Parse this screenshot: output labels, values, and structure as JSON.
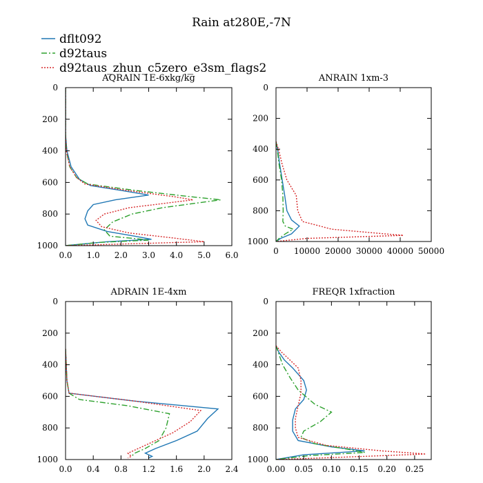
{
  "figure_title": "Rain at280E,-7N",
  "series": [
    {
      "name": "dflt092",
      "color": "#1f77b4",
      "dash": ""
    },
    {
      "name": "d92taus",
      "color": "#2ca02c",
      "dash": "8,3,2,3"
    },
    {
      "name": "d92taus_zhun_c5zero_e3sm_flags2",
      "color": "#d62728",
      "dash": "2,2"
    }
  ],
  "chart_data": [
    {
      "type": "line",
      "title": "AQRAIN  1E-6xkg/kg",
      "xlim": [
        0,
        6
      ],
      "ylim": [
        1000,
        0
      ],
      "xticks": [
        0,
        1,
        2,
        3,
        4,
        5,
        6
      ],
      "xtick_labels": [
        "0.0",
        "1.0",
        "2.0",
        "3.0",
        "4.0",
        "5.0",
        "6.0"
      ],
      "yticks": [
        0,
        200,
        400,
        600,
        800,
        1000
      ],
      "ytick_labels": [
        "0",
        "200",
        "400",
        "600",
        "800",
        "1000"
      ],
      "series": [
        {
          "name": "dflt092",
          "points": [
            [
              0,
              0
            ],
            [
              0,
              300
            ],
            [
              0.05,
              400
            ],
            [
              0.2,
              500
            ],
            [
              0.5,
              580
            ],
            [
              0.9,
              620
            ],
            [
              2.0,
              650
            ],
            [
              3.0,
              680
            ],
            [
              1.8,
              710
            ],
            [
              1.0,
              740
            ],
            [
              0.8,
              780
            ],
            [
              0.7,
              830
            ],
            [
              0.8,
              870
            ],
            [
              1.5,
              910
            ],
            [
              2.5,
              940
            ],
            [
              3.1,
              960
            ],
            [
              1.5,
              975
            ],
            [
              0,
              1000
            ]
          ]
        },
        {
          "name": "d92taus",
          "points": [
            [
              0,
              0
            ],
            [
              0,
              300
            ],
            [
              0.03,
              400
            ],
            [
              0.15,
              500
            ],
            [
              0.4,
              570
            ],
            [
              0.8,
              610
            ],
            [
              2.5,
              650
            ],
            [
              4.5,
              690
            ],
            [
              5.6,
              710
            ],
            [
              3.5,
              760
            ],
            [
              2.4,
              800
            ],
            [
              1.7,
              850
            ],
            [
              1.4,
              900
            ],
            [
              1.6,
              940
            ],
            [
              2.5,
              955
            ],
            [
              3.0,
              965
            ],
            [
              1.2,
              980
            ],
            [
              0,
              1000
            ]
          ]
        },
        {
          "name": "d92taus_zhun_c5zero_e3sm_flags2",
          "points": [
            [
              0,
              0
            ],
            [
              0,
              300
            ],
            [
              0.03,
              400
            ],
            [
              0.15,
              500
            ],
            [
              0.4,
              570
            ],
            [
              0.7,
              610
            ],
            [
              2.2,
              650
            ],
            [
              3.9,
              690
            ],
            [
              4.6,
              710
            ],
            [
              2.3,
              760
            ],
            [
              1.4,
              800
            ],
            [
              1.1,
              840
            ],
            [
              1.3,
              880
            ],
            [
              2.3,
              920
            ],
            [
              3.8,
              950
            ],
            [
              5.0,
              975
            ],
            [
              2.0,
              990
            ],
            [
              0,
              1000
            ]
          ]
        }
      ]
    },
    {
      "type": "line",
      "title": "ANRAIN  1xm-3",
      "xlim": [
        0,
        50000
      ],
      "ylim": [
        1000,
        0
      ],
      "xticks": [
        0,
        10000,
        20000,
        30000,
        40000,
        50000
      ],
      "xtick_labels": [
        "0",
        "10000",
        "20000",
        "30000",
        "40000",
        "50000"
      ],
      "yticks": [
        0,
        200,
        400,
        600,
        800,
        1000
      ],
      "ytick_labels": [
        "0",
        "200",
        "400",
        "600",
        "800",
        "1000"
      ],
      "series": [
        {
          "name": "dflt092",
          "points": [
            [
              0,
              350
            ],
            [
              500,
              400
            ],
            [
              1200,
              500
            ],
            [
              2000,
              600
            ],
            [
              2800,
              700
            ],
            [
              3500,
              800
            ],
            [
              5000,
              860
            ],
            [
              7500,
              900
            ],
            [
              5000,
              950
            ],
            [
              1500,
              980
            ],
            [
              0,
              1000
            ]
          ]
        },
        {
          "name": "d92taus",
          "points": [
            [
              0,
              350
            ],
            [
              400,
              400
            ],
            [
              1000,
              500
            ],
            [
              1800,
              600
            ],
            [
              2200,
              700
            ],
            [
              2300,
              800
            ],
            [
              2200,
              870
            ],
            [
              3000,
              900
            ],
            [
              5500,
              920
            ],
            [
              3000,
              950
            ],
            [
              1000,
              980
            ],
            [
              0,
              1000
            ]
          ]
        },
        {
          "name": "d92taus_zhun_c5zero_e3sm_flags2",
          "points": [
            [
              0,
              350
            ],
            [
              800,
              400
            ],
            [
              2000,
              500
            ],
            [
              3500,
              600
            ],
            [
              5000,
              650
            ],
            [
              6500,
              700
            ],
            [
              7000,
              800
            ],
            [
              8500,
              870
            ],
            [
              18000,
              920
            ],
            [
              35000,
              950
            ],
            [
              41000,
              960
            ],
            [
              10000,
              980
            ],
            [
              0,
              1000
            ]
          ]
        }
      ]
    },
    {
      "type": "line",
      "title": "ADRAIN  1E-4xm",
      "xlim": [
        0,
        2.4
      ],
      "ylim": [
        1000,
        0
      ],
      "xticks": [
        0,
        0.4,
        0.8,
        1.2,
        1.6,
        2.0,
        2.4
      ],
      "xtick_labels": [
        "0.0",
        "0.4",
        "0.8",
        "1.2",
        "1.6",
        "2.0",
        "2.4"
      ],
      "yticks": [
        0,
        200,
        400,
        600,
        800,
        1000
      ],
      "ytick_labels": [
        "0",
        "200",
        "400",
        "600",
        "800",
        "1000"
      ],
      "series": [
        {
          "name": "dflt092",
          "points": [
            [
              0,
              300
            ],
            [
              0.02,
              500
            ],
            [
              0.05,
              580
            ],
            [
              1.0,
              630
            ],
            [
              2.2,
              680
            ],
            [
              2.05,
              740
            ],
            [
              1.9,
              820
            ],
            [
              1.6,
              880
            ],
            [
              1.3,
              930
            ],
            [
              1.15,
              960
            ],
            [
              1.25,
              980
            ],
            [
              1.2,
              990
            ]
          ]
        },
        {
          "name": "d92taus",
          "points": [
            [
              0,
              300
            ],
            [
              0.02,
              500
            ],
            [
              0.05,
              580
            ],
            [
              0.2,
              620
            ],
            [
              0.9,
              660
            ],
            [
              1.5,
              710
            ],
            [
              1.45,
              800
            ],
            [
              1.35,
              880
            ],
            [
              1.15,
              930
            ],
            [
              1.0,
              960
            ],
            [
              0.95,
              980
            ]
          ]
        },
        {
          "name": "d92taus_zhun_c5zero_e3sm_flags2",
          "points": [
            [
              0,
              300
            ],
            [
              0.02,
              500
            ],
            [
              0.05,
              580
            ],
            [
              1.0,
              630
            ],
            [
              1.95,
              690
            ],
            [
              1.8,
              760
            ],
            [
              1.55,
              830
            ],
            [
              1.3,
              880
            ],
            [
              1.05,
              930
            ],
            [
              0.9,
              960
            ],
            [
              0.95,
              980
            ],
            [
              0.9,
              990
            ]
          ]
        }
      ]
    },
    {
      "type": "line",
      "title": "FREQR  1xfraction",
      "xlim": [
        0,
        0.28
      ],
      "ylim": [
        1000,
        0
      ],
      "xticks": [
        0,
        0.05,
        0.1,
        0.15,
        0.2,
        0.25
      ],
      "xtick_labels": [
        "0.00",
        "0.05",
        "0.10",
        "0.15",
        "0.20",
        "0.25"
      ],
      "yticks": [
        0,
        200,
        400,
        600,
        800,
        1000
      ],
      "ytick_labels": [
        "0",
        "200",
        "400",
        "600",
        "800",
        "1000"
      ],
      "series": [
        {
          "name": "dflt092",
          "points": [
            [
              0,
              280
            ],
            [
              0.005,
              320
            ],
            [
              0.015,
              370
            ],
            [
              0.03,
              420
            ],
            [
              0.05,
              500
            ],
            [
              0.055,
              560
            ],
            [
              0.05,
              620
            ],
            [
              0.035,
              680
            ],
            [
              0.03,
              750
            ],
            [
              0.03,
              820
            ],
            [
              0.04,
              880
            ],
            [
              0.1,
              920
            ],
            [
              0.16,
              945
            ],
            [
              0.05,
              970
            ],
            [
              0,
              1000
            ]
          ]
        },
        {
          "name": "d92taus",
          "points": [
            [
              0,
              280
            ],
            [
              0.005,
              330
            ],
            [
              0.012,
              400
            ],
            [
              0.025,
              480
            ],
            [
              0.04,
              560
            ],
            [
              0.07,
              650
            ],
            [
              0.1,
              700
            ],
            [
              0.08,
              760
            ],
            [
              0.05,
              820
            ],
            [
              0.045,
              860
            ],
            [
              0.07,
              900
            ],
            [
              0.13,
              935
            ],
            [
              0.16,
              955
            ],
            [
              0.06,
              975
            ],
            [
              0,
              1000
            ]
          ]
        },
        {
          "name": "d92taus_zhun_c5zero_e3sm_flags2",
          "points": [
            [
              0,
              280
            ],
            [
              0.01,
              320
            ],
            [
              0.025,
              370
            ],
            [
              0.04,
              420
            ],
            [
              0.045,
              500
            ],
            [
              0.045,
              580
            ],
            [
              0.04,
              660
            ],
            [
              0.035,
              740
            ],
            [
              0.035,
              800
            ],
            [
              0.04,
              860
            ],
            [
              0.09,
              910
            ],
            [
              0.19,
              945
            ],
            [
              0.27,
              965
            ],
            [
              0.12,
              985
            ],
            [
              0,
              1000
            ]
          ]
        }
      ]
    }
  ]
}
